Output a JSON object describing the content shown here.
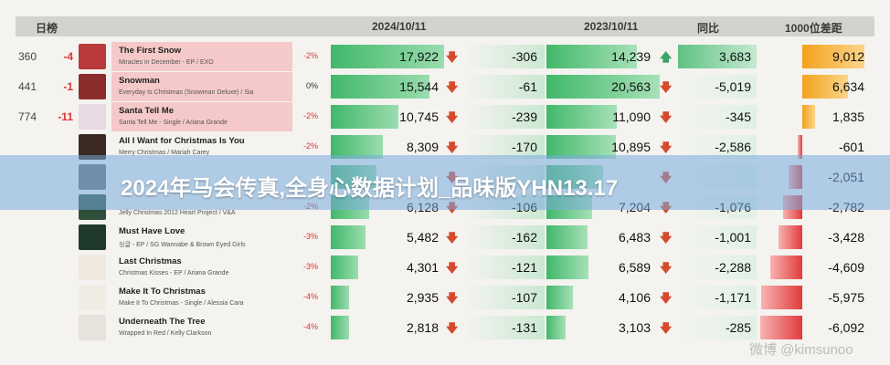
{
  "header": {
    "rank_label": "日榜",
    "date1": "2024/10/11",
    "date2": "2023/10/11",
    "compare": "同比",
    "gap": "1000位差距"
  },
  "rows": [
    {
      "rank": "360",
      "change": "-4",
      "title": "The First Snow",
      "subtitle": "Miracles in December - EP / EXO",
      "pct": "-2%",
      "v2024": "17,922",
      "v2024_frac": 1.0,
      "d1": "-306",
      "v2023": "14,239",
      "v2023_frac": 0.8,
      "d2": "3,683",
      "d2_up": true,
      "gap": "9,012",
      "gap_pos": true,
      "cover": "#b83a3a",
      "highlight": true
    },
    {
      "rank": "441",
      "change": "-1",
      "title": "Snowman",
      "subtitle": "Everyday Is Christmas (Snowman Deluxe) / Sia",
      "pct": "0%",
      "v2024": "15,544",
      "v2024_frac": 0.87,
      "d1": "-61",
      "v2023": "20,563",
      "v2023_frac": 1.0,
      "d2": "-5,019",
      "d2_up": false,
      "gap": "6,634",
      "gap_pos": true,
      "cover": "#8b2d2d",
      "highlight": true
    },
    {
      "rank": "774",
      "change": "-11",
      "title": "Santa Tell Me",
      "subtitle": "Santa Tell Me - Single / Ariana Grande",
      "pct": "-2%",
      "v2024": "10,745",
      "v2024_frac": 0.6,
      "d1": "-239",
      "v2023": "11,090",
      "v2023_frac": 0.62,
      "d2": "-345",
      "d2_up": false,
      "gap": "1,835",
      "gap_pos": true,
      "cover": "#e8d9e3",
      "highlight": true
    },
    {
      "rank": "",
      "change": "",
      "title": "All I Want for Christmas Is You",
      "subtitle": "Merry Christmas / Mariah Carey",
      "pct": "-2%",
      "v2024": "8,309",
      "v2024_frac": 0.46,
      "d1": "-170",
      "v2023": "10,895",
      "v2023_frac": 0.61,
      "d2": "-2,586",
      "d2_up": false,
      "gap": "-601",
      "gap_pos": false,
      "cover": "#3a2a22",
      "highlight": false
    },
    {
      "rank": "",
      "change": "",
      "title": "",
      "subtitle": "",
      "pct": "",
      "v2024": "",
      "v2024_frac": 0.4,
      "d1": "",
      "v2023": "",
      "v2023_frac": 0.5,
      "d2": "",
      "d2_up": false,
      "gap": "-2,051",
      "gap_pos": false,
      "cover": "#6b6b6b",
      "highlight": false
    },
    {
      "rank": "",
      "change": "",
      "title": "",
      "subtitle": "Jelly Christmas 2012 Heart Project  / V&A",
      "pct": "-2%",
      "v2024": "6,128",
      "v2024_frac": 0.34,
      "d1": "-106",
      "v2023": "7,204",
      "v2023_frac": 0.4,
      "d2": "-1,076",
      "d2_up": false,
      "gap": "-2,782",
      "gap_pos": false,
      "cover": "#2e4f3a",
      "highlight": false
    },
    {
      "rank": "",
      "change": "",
      "title": "Must Have Love",
      "subtitle": "싱글 - EP / SG Wannabe & Brown Eyed Girls",
      "pct": "-3%",
      "v2024": "5,482",
      "v2024_frac": 0.31,
      "d1": "-162",
      "v2023": "6,483",
      "v2023_frac": 0.36,
      "d2": "-1,001",
      "d2_up": false,
      "gap": "-3,428",
      "gap_pos": false,
      "cover": "#1f3a2c",
      "highlight": false
    },
    {
      "rank": "",
      "change": "",
      "title": "Last Christmas",
      "subtitle": "Christmas Kisses - EP / Ariana Grande",
      "pct": "-3%",
      "v2024": "4,301",
      "v2024_frac": 0.24,
      "d1": "-121",
      "v2023": "6,589",
      "v2023_frac": 0.37,
      "d2": "-2,288",
      "d2_up": false,
      "gap": "-4,609",
      "gap_pos": false,
      "cover": "#efe9df",
      "highlight": false
    },
    {
      "rank": "",
      "change": "",
      "title": "Make It To Christmas",
      "subtitle": "Make It To Christmas - Single / Alessia Cara",
      "pct": "-4%",
      "v2024": "2,935",
      "v2024_frac": 0.16,
      "d1": "-107",
      "v2023": "4,106",
      "v2023_frac": 0.23,
      "d2": "-1,171",
      "d2_up": false,
      "gap": "-5,975",
      "gap_pos": false,
      "cover": "#f0ece4",
      "highlight": false
    },
    {
      "rank": "",
      "change": "",
      "title": "Underneath The Tree",
      "subtitle": "Wrapped In Red / Kelly Clarkson",
      "pct": "-4%",
      "v2024": "2,818",
      "v2024_frac": 0.16,
      "d1": "-131",
      "v2023": "3,103",
      "v2023_frac": 0.17,
      "d2": "-285",
      "d2_up": false,
      "gap": "-6,092",
      "gap_pos": false,
      "cover": "#e7e2dc",
      "highlight": false
    }
  ],
  "banner": "2024年马会传真,全身心数据计划_品味版YHN13.17",
  "watermark": "微博 @kimsunoo",
  "colors": {
    "green": "#41b86a",
    "red": "#e23b3b",
    "orange": "#f0a020",
    "highlight": "#f5c9c9"
  }
}
